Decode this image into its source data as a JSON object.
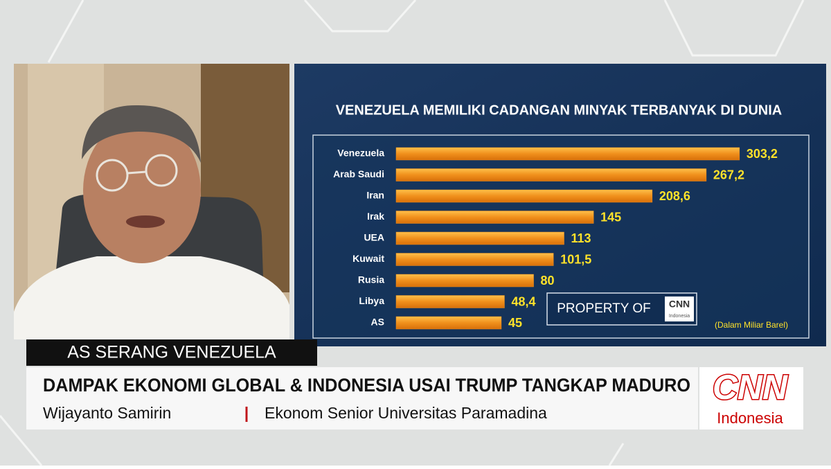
{
  "chart_data": {
    "type": "bar",
    "orientation": "horizontal",
    "title": "VENEZUELA MEMILIKI CADANGAN MINYAK TERBANYAK DI DUNIA",
    "note": "(Dalam Miliar Barel)",
    "categories": [
      "Venezuela",
      "Arab Saudi",
      "Iran",
      "Irak",
      "UEA",
      "Kuwait",
      "Rusia",
      "Libya",
      "AS"
    ],
    "values": [
      303.2,
      267.2,
      208.6,
      145,
      113,
      101.5,
      80,
      48.4,
      45
    ],
    "value_labels": [
      "303,2",
      "267,2",
      "208,6",
      "145",
      "113",
      "101,5",
      "80",
      "48,4",
      "45"
    ],
    "color": "#f0901c",
    "label_color": "#ffe22a"
  },
  "watermark": {
    "text": "PROPERTY OF",
    "logo": "CNN",
    "logo_sub": "Indonesia"
  },
  "lower_third": {
    "tag": "AS SERANG VENEZUELA",
    "headline": "DAMPAK EKONOMI GLOBAL & INDONESIA USAI TRUMP TANGKAP MADURO",
    "speaker": "Wijayanto Samirin",
    "speaker_role": "Ekonom Senior Universitas Paramadina"
  },
  "brand": {
    "logo": "CNN",
    "sub": "Indonesia"
  }
}
